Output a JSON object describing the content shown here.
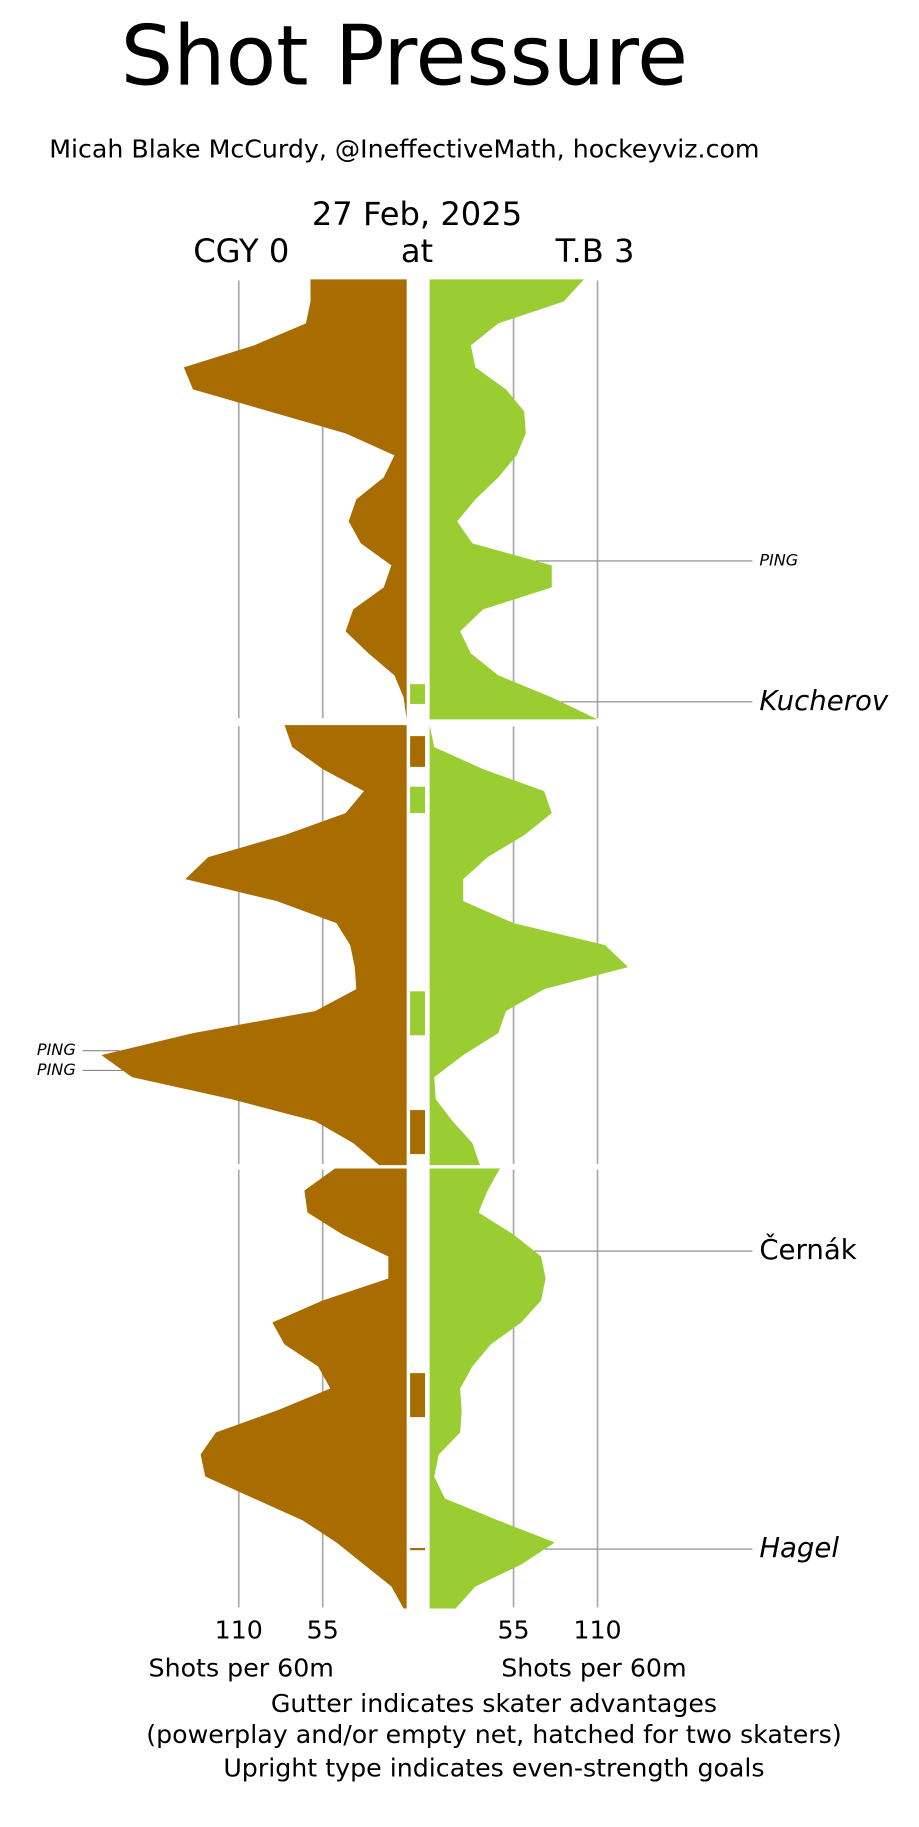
{
  "chart_data": {
    "type": "pressure",
    "title": "Shot Pressure",
    "subtitle": "Micah Blake McCurdy, @IneffectiveMath, hockeyviz.com",
    "date": "27 Feb, 2025",
    "at": "at",
    "teams": [
      {
        "name": "CGY 0",
        "color": "#a86c00"
      },
      {
        "name": "T.B 3",
        "color": "#9acd32"
      }
    ],
    "x": [
      0,
      1,
      2,
      3,
      4,
      5,
      6,
      7,
      8,
      9,
      10,
      11,
      12,
      13,
      14,
      15,
      16,
      17,
      18,
      19,
      20
    ],
    "xlim": [
      0,
      210
    ],
    "xticks": [
      55,
      110
    ],
    "x_label": "Shots per 60m",
    "notes": [
      "Gutter indicates skater advantages",
      "(powerplay and/or empty net, hatched for two skaters)",
      "Upright type indicates even-strength goals"
    ],
    "panels": [
      {
        "series": [
          {
            "values": [
              63,
              63,
              66,
              100,
              146,
              140,
              90,
              40,
              8,
              15,
              33,
              38,
              30,
              10,
              15,
              35,
              40,
              25,
              8,
              2,
              0
            ]
          },
          {
            "values": [
              101,
              88,
              45,
              27,
              30,
              50,
              62,
              63,
              57,
              45,
              30,
              18,
              28,
              80,
              80,
              35,
              20,
              27,
              45,
              80,
              110
            ]
          }
        ],
        "advantages": [
          {
            "color": "#9acd32",
            "start": 18.4,
            "end": 19.3
          }
        ],
        "annotations": [
          {
            "text": "PING",
            "minute": 12.8,
            "side": "right",
            "italic": true,
            "small": true
          },
          {
            "text": "Kucherov",
            "minute": 19.2,
            "side": "right",
            "italic": true,
            "small": false
          }
        ]
      },
      {
        "series": [
          {
            "values": [
              80,
              75,
              55,
              28,
              40,
              80,
              130,
              145,
              85,
              46,
              37,
              34,
              33,
              60,
              140,
              200,
              180,
              115,
              60,
              35,
              18
            ]
          },
          {
            "values": [
              0,
              3,
              35,
              75,
              80,
              62,
              38,
              22,
              22,
              55,
              115,
              130,
              75,
              50,
              45,
              22,
              3,
              4,
              15,
              28,
              33
            ]
          }
        ],
        "advantages": [
          {
            "color": "#a86c00",
            "start": 0.5,
            "end": 1.9
          },
          {
            "color": "#9acd32",
            "start": 2.8,
            "end": 4.0
          },
          {
            "color": "#9acd32",
            "start": 12.1,
            "end": 14.1
          },
          {
            "color": "#a86c00",
            "start": 17.5,
            "end": 19.5
          }
        ],
        "annotations": [
          {
            "text": "PING",
            "minute": 14.8,
            "side": "left",
            "italic": true,
            "small": true
          },
          {
            "text": "PING",
            "minute": 15.7,
            "side": "left",
            "italic": true,
            "small": true
          }
        ]
      },
      {
        "series": [
          {
            "values": [
              47,
              67,
              65,
              42,
              12,
              12,
              55,
              88,
              80,
              58,
              50,
              85,
              125,
              135,
              132,
              100,
              68,
              46,
              28,
              10,
              2
            ]
          },
          {
            "values": [
              46,
              38,
              32,
              55,
              73,
              76,
              73,
              60,
              40,
              28,
              20,
              21,
              20,
              6,
              3,
              10,
              45,
              82,
              60,
              30,
              17
            ]
          }
        ],
        "advantages": [
          {
            "color": "#a86c00",
            "start": 9.3,
            "end": 11.3
          },
          {
            "color": "#a86c00",
            "start": 17.25,
            "end": 17.35
          }
        ],
        "annotations": [
          {
            "text": "Černák",
            "minute": 3.75,
            "side": "right",
            "italic": false,
            "small": false
          },
          {
            "text": "Hagel",
            "minute": 17.3,
            "side": "right",
            "italic": true,
            "small": false
          }
        ]
      }
    ]
  }
}
